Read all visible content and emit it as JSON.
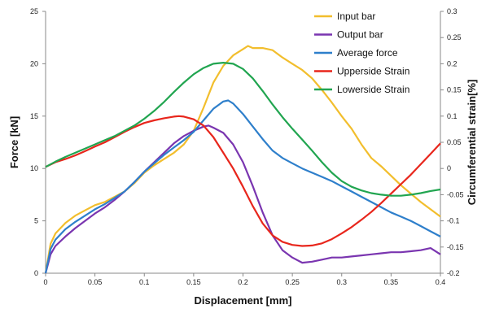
{
  "chart_data": {
    "type": "line",
    "xlabel": "Displacement [mm]",
    "ylabel": "Force [kN]",
    "ylabel_right": "Circumferential strain[%]",
    "xlim": [
      0,
      0.4
    ],
    "ylim": [
      0,
      25
    ],
    "ylim_right": [
      -0.2,
      0.3
    ],
    "x_ticks": [
      0,
      0.05,
      0.1,
      0.15,
      0.2,
      0.25,
      0.3,
      0.35,
      0.4
    ],
    "x_tick_labels": [
      "0",
      "0.05",
      "0.1",
      "0.15",
      "0.2",
      "0.25",
      "0.3",
      "0.35",
      "0.4"
    ],
    "y_ticks": [
      0,
      5,
      10,
      15,
      20,
      25
    ],
    "y_tick_labels": [
      "0",
      "5",
      "10",
      "15",
      "20",
      "25"
    ],
    "y_right_ticks": [
      -0.2,
      -0.15,
      -0.1,
      -0.05,
      0,
      0.05,
      0.1,
      0.15,
      0.2,
      0.25,
      0.3
    ],
    "y_right_tick_labels": [
      "-0.2",
      "-0.15",
      "-0.1",
      "-0.05",
      "0",
      "0.05",
      "0.1",
      "0.15",
      "0.2",
      "0.25",
      "0.3"
    ],
    "grid": false,
    "legend_position": "top-right",
    "series": [
      {
        "name": "Input bar",
        "axis": "left",
        "color": "#F2BE2D",
        "x": [
          0,
          0.005,
          0.01,
          0.02,
          0.03,
          0.04,
          0.05,
          0.06,
          0.07,
          0.08,
          0.09,
          0.1,
          0.11,
          0.12,
          0.13,
          0.14,
          0.15,
          0.16,
          0.17,
          0.18,
          0.19,
          0.2,
          0.205,
          0.21,
          0.22,
          0.23,
          0.24,
          0.25,
          0.26,
          0.27,
          0.28,
          0.29,
          0.3,
          0.31,
          0.32,
          0.33,
          0.34,
          0.35,
          0.36,
          0.37,
          0.38,
          0.39,
          0.4
        ],
        "values": [
          0,
          2.8,
          3.8,
          4.8,
          5.5,
          6.0,
          6.5,
          6.8,
          7.3,
          7.8,
          8.6,
          9.6,
          10.3,
          10.9,
          11.5,
          12.3,
          13.6,
          15.8,
          18.2,
          19.8,
          20.8,
          21.4,
          21.7,
          21.5,
          21.5,
          21.3,
          20.6,
          20.0,
          19.4,
          18.6,
          17.5,
          16.3,
          15.0,
          13.8,
          12.3,
          11.0,
          10.2,
          9.3,
          8.4,
          7.6,
          6.8,
          6.1,
          5.4
        ]
      },
      {
        "name": "Output bar",
        "axis": "left",
        "color": "#7A35B0",
        "x": [
          0,
          0.005,
          0.01,
          0.02,
          0.03,
          0.04,
          0.05,
          0.06,
          0.07,
          0.08,
          0.09,
          0.1,
          0.11,
          0.12,
          0.13,
          0.14,
          0.15,
          0.16,
          0.165,
          0.17,
          0.18,
          0.19,
          0.2,
          0.21,
          0.22,
          0.23,
          0.24,
          0.25,
          0.26,
          0.27,
          0.28,
          0.29,
          0.3,
          0.31,
          0.32,
          0.33,
          0.34,
          0.35,
          0.36,
          0.37,
          0.38,
          0.39,
          0.4
        ],
        "values": [
          0,
          1.8,
          2.6,
          3.5,
          4.3,
          5.0,
          5.7,
          6.3,
          7.0,
          7.8,
          8.7,
          9.7,
          10.6,
          11.5,
          12.4,
          13.1,
          13.6,
          14.0,
          14.1,
          13.9,
          13.4,
          12.3,
          10.6,
          8.3,
          5.8,
          3.6,
          2.2,
          1.5,
          1.0,
          1.1,
          1.3,
          1.5,
          1.5,
          1.6,
          1.7,
          1.8,
          1.9,
          2.0,
          2.0,
          2.1,
          2.2,
          2.4,
          1.8
        ]
      },
      {
        "name": "Average force",
        "axis": "left",
        "color": "#2E7FCB",
        "x": [
          0,
          0.005,
          0.01,
          0.02,
          0.03,
          0.04,
          0.05,
          0.06,
          0.07,
          0.08,
          0.09,
          0.1,
          0.11,
          0.12,
          0.13,
          0.14,
          0.15,
          0.16,
          0.17,
          0.18,
          0.185,
          0.19,
          0.2,
          0.21,
          0.22,
          0.23,
          0.24,
          0.25,
          0.26,
          0.27,
          0.28,
          0.29,
          0.3,
          0.31,
          0.32,
          0.33,
          0.34,
          0.35,
          0.36,
          0.37,
          0.38,
          0.39,
          0.4
        ],
        "values": [
          0,
          2.3,
          3.2,
          4.2,
          4.9,
          5.5,
          6.1,
          6.6,
          7.2,
          7.8,
          8.7,
          9.7,
          10.5,
          11.3,
          12.0,
          12.7,
          13.5,
          14.6,
          15.7,
          16.4,
          16.5,
          16.2,
          15.2,
          14.0,
          12.8,
          11.7,
          11.0,
          10.5,
          10.0,
          9.6,
          9.2,
          8.8,
          8.3,
          7.8,
          7.3,
          6.8,
          6.3,
          5.8,
          5.4,
          5.0,
          4.5,
          4.0,
          3.5
        ]
      },
      {
        "name": "Upperside Strain",
        "axis": "right",
        "color": "#E8261C",
        "x": [
          0,
          0.01,
          0.02,
          0.03,
          0.04,
          0.05,
          0.06,
          0.07,
          0.08,
          0.09,
          0.1,
          0.11,
          0.12,
          0.13,
          0.135,
          0.14,
          0.15,
          0.16,
          0.17,
          0.18,
          0.19,
          0.2,
          0.21,
          0.22,
          0.23,
          0.24,
          0.25,
          0.26,
          0.27,
          0.28,
          0.29,
          0.3,
          0.31,
          0.32,
          0.33,
          0.34,
          0.35,
          0.36,
          0.37,
          0.38,
          0.39,
          0.4
        ],
        "values": [
          0.003,
          0.012,
          0.018,
          0.025,
          0.033,
          0.042,
          0.05,
          0.06,
          0.07,
          0.079,
          0.087,
          0.092,
          0.096,
          0.099,
          0.1,
          0.099,
          0.094,
          0.082,
          0.06,
          0.03,
          0.0,
          -0.035,
          -0.072,
          -0.105,
          -0.128,
          -0.14,
          -0.146,
          -0.148,
          -0.147,
          -0.143,
          -0.135,
          -0.124,
          -0.112,
          -0.098,
          -0.083,
          -0.066,
          -0.048,
          -0.03,
          -0.012,
          0.008,
          0.028,
          0.048
        ]
      },
      {
        "name": "Lowerside Strain",
        "axis": "right",
        "color": "#21A550",
        "x": [
          0,
          0.01,
          0.02,
          0.03,
          0.04,
          0.05,
          0.06,
          0.07,
          0.08,
          0.09,
          0.1,
          0.11,
          0.12,
          0.13,
          0.14,
          0.15,
          0.16,
          0.17,
          0.18,
          0.19,
          0.2,
          0.21,
          0.22,
          0.23,
          0.24,
          0.25,
          0.26,
          0.27,
          0.28,
          0.29,
          0.3,
          0.31,
          0.32,
          0.33,
          0.34,
          0.35,
          0.36,
          0.37,
          0.38,
          0.39,
          0.4
        ],
        "values": [
          0.003,
          0.013,
          0.022,
          0.03,
          0.038,
          0.046,
          0.054,
          0.062,
          0.072,
          0.082,
          0.095,
          0.11,
          0.127,
          0.146,
          0.164,
          0.18,
          0.192,
          0.2,
          0.202,
          0.2,
          0.19,
          0.172,
          0.148,
          0.122,
          0.098,
          0.076,
          0.055,
          0.034,
          0.012,
          -0.008,
          -0.024,
          -0.035,
          -0.042,
          -0.047,
          -0.05,
          -0.052,
          -0.052,
          -0.05,
          -0.047,
          -0.043,
          -0.04
        ]
      }
    ]
  }
}
